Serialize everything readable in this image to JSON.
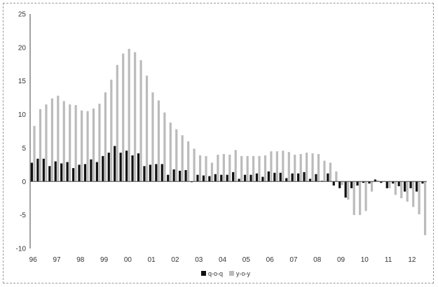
{
  "chart_data": {
    "type": "bar",
    "title": "",
    "xlabel": "",
    "ylabel": "",
    "ylim": [
      -10,
      25
    ],
    "y_ticks": [
      "25",
      "20",
      "15",
      "10",
      "5",
      "0",
      "-5",
      "-10"
    ],
    "x_tick_labels": [
      "96",
      "97",
      "98",
      "99",
      "00",
      "01",
      "02",
      "03",
      "04",
      "05",
      "06",
      "07",
      "08",
      "09",
      "10",
      "11",
      "12"
    ],
    "periods_per_label": 4,
    "grid": false,
    "legend_position": "bottom-center",
    "series": [
      {
        "name": "q-o-q",
        "color": "#111111",
        "values": [
          2.8,
          3.4,
          3.4,
          2.3,
          3.0,
          2.7,
          2.9,
          2.0,
          2.5,
          2.6,
          3.3,
          2.9,
          3.8,
          4.3,
          5.3,
          4.3,
          4.6,
          3.9,
          4.2,
          2.3,
          2.5,
          2.6,
          2.6,
          1.0,
          1.8,
          1.6,
          1.7,
          -0.1,
          1.0,
          0.9,
          0.8,
          1.1,
          1.0,
          1.0,
          1.4,
          0.4,
          1.0,
          1.0,
          1.2,
          0.7,
          1.5,
          1.3,
          1.3,
          0.5,
          1.2,
          1.2,
          1.4,
          0.4,
          1.1,
          0.1,
          1.2,
          -0.6,
          -1.0,
          -2.4,
          -1.0,
          -0.6,
          -0.2,
          -0.3,
          0.3,
          -0.2,
          -1.0,
          -0.3,
          -0.7,
          -1.5,
          -1.0,
          -1.5,
          -0.3
        ]
      },
      {
        "name": "y-o-y",
        "color": "#bbbbbb",
        "values": [
          8.3,
          10.8,
          11.5,
          12.4,
          12.8,
          12.0,
          11.5,
          11.4,
          10.6,
          10.5,
          10.9,
          11.6,
          13.3,
          15.2,
          17.4,
          19.1,
          19.8,
          19.3,
          18.1,
          15.8,
          13.3,
          12.1,
          10.3,
          8.8,
          7.8,
          6.9,
          6.0,
          4.9,
          3.9,
          3.8,
          2.8,
          4.0,
          4.1,
          4.0,
          4.7,
          3.8,
          3.8,
          3.8,
          3.8,
          3.9,
          4.5,
          4.5,
          4.6,
          4.4,
          4.0,
          4.1,
          4.3,
          4.2,
          4.1,
          3.1,
          2.8,
          1.5,
          -0.5,
          -2.7,
          -5.0,
          -5.0,
          -4.4,
          -1.5,
          0.2,
          0.0,
          -1.0,
          -2.0,
          -2.5,
          -3.0,
          -3.8,
          -4.9,
          -8.0
        ]
      }
    ]
  }
}
